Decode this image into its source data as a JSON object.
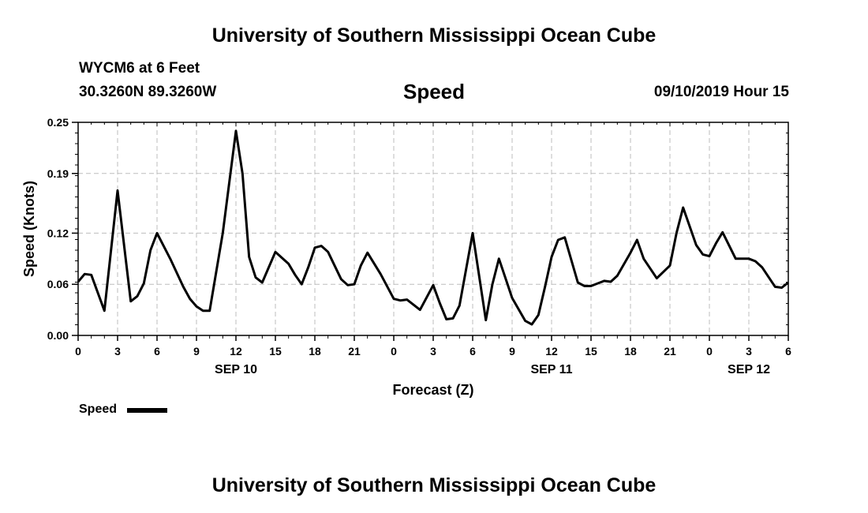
{
  "page": {
    "top_title": "University of Southern Mississippi Ocean Cube",
    "bottom_title": "University of Southern Mississippi Ocean Cube",
    "station": "WYCM6 at 6 Feet",
    "coords": "30.3260N 89.3260W",
    "datetime": "09/10/2019 Hour 15"
  },
  "legend": {
    "label": "Speed",
    "color": "#000000"
  },
  "chart_data": {
    "type": "line",
    "title": "Speed",
    "xlabel": "Forecast (Z)",
    "ylabel": "Speed (Knots)",
    "xlim": [
      0,
      54
    ],
    "ylim": [
      0,
      0.25
    ],
    "yticks": [
      0.0,
      0.06,
      0.12,
      0.19,
      0.25
    ],
    "ytick_labels": [
      "0.00",
      "0.06",
      "0.12",
      "0.19",
      "0.25"
    ],
    "xtick_positions": [
      0,
      3,
      6,
      9,
      12,
      15,
      18,
      21,
      24,
      27,
      30,
      33,
      36,
      39,
      42,
      45,
      48,
      51,
      54
    ],
    "xtick_labels": [
      "0",
      "3",
      "6",
      "9",
      "12",
      "15",
      "18",
      "21",
      "0",
      "3",
      "6",
      "9",
      "12",
      "15",
      "18",
      "21",
      "0",
      "3",
      "6"
    ],
    "date_labels": [
      {
        "x": 12,
        "label": "SEP 10"
      },
      {
        "x": 36,
        "label": "SEP 11"
      },
      {
        "x": 51,
        "label": "SEP 12"
      }
    ],
    "grid": true,
    "series": [
      {
        "name": "Speed",
        "color": "#000000",
        "x": [
          0,
          0.5,
          1,
          2,
          3,
          4,
          4.5,
          5,
          5.5,
          6,
          7,
          8,
          8.5,
          9,
          9.5,
          10,
          11,
          12,
          12.5,
          13,
          13.5,
          14,
          15,
          16,
          16.5,
          17,
          17.5,
          18,
          18.5,
          19,
          20,
          20.5,
          21,
          21.5,
          22,
          23,
          24,
          24.5,
          25,
          26,
          27,
          27.5,
          28,
          28.5,
          29,
          30,
          31,
          31.5,
          32,
          33,
          34,
          34.5,
          35,
          35.5,
          36,
          36.5,
          37,
          38,
          38.5,
          39,
          40,
          40.5,
          41,
          42,
          42.5,
          43,
          44,
          45,
          45.5,
          46,
          47,
          47.5,
          48,
          48.5,
          49,
          50,
          51,
          51.5,
          52,
          53,
          53.5,
          54
        ],
        "values": [
          0.063,
          0.072,
          0.071,
          0.029,
          0.17,
          0.04,
          0.046,
          0.061,
          0.1,
          0.12,
          0.09,
          0.057,
          0.043,
          0.034,
          0.029,
          0.029,
          0.12,
          0.24,
          0.19,
          0.092,
          0.068,
          0.062,
          0.098,
          0.084,
          0.071,
          0.06,
          0.08,
          0.103,
          0.105,
          0.098,
          0.066,
          0.059,
          0.06,
          0.082,
          0.097,
          0.072,
          0.043,
          0.041,
          0.042,
          0.03,
          0.059,
          0.038,
          0.019,
          0.02,
          0.035,
          0.12,
          0.018,
          0.06,
          0.09,
          0.044,
          0.017,
          0.013,
          0.024,
          0.057,
          0.092,
          0.112,
          0.115,
          0.062,
          0.058,
          0.058,
          0.064,
          0.063,
          0.07,
          0.097,
          0.112,
          0.09,
          0.067,
          0.082,
          0.12,
          0.15,
          0.106,
          0.095,
          0.093,
          0.108,
          0.121,
          0.09,
          0.09,
          0.087,
          0.08,
          0.057,
          0.056,
          0.062
        ]
      }
    ]
  }
}
